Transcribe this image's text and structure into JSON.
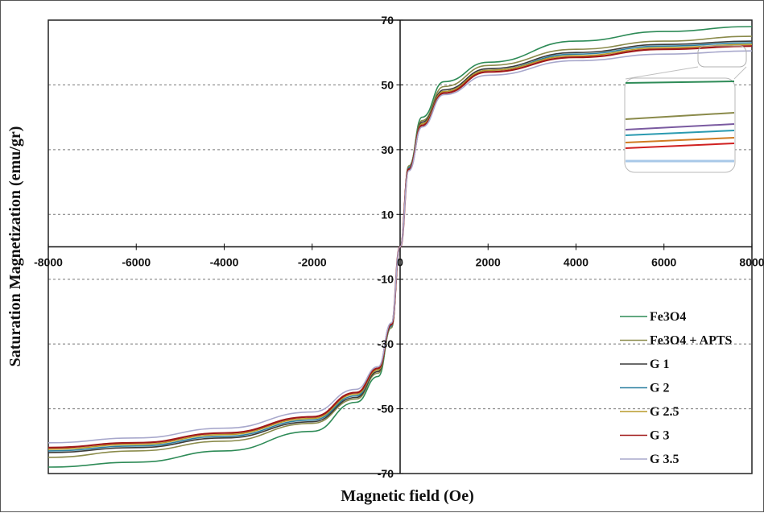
{
  "chart_data": {
    "type": "line",
    "xlabel": "Magnetic field (Oe)",
    "ylabel": "Saturation Magnetization (emu/gr)",
    "xlim": [
      -8000,
      8000
    ],
    "ylim": [
      -70,
      70
    ],
    "x_ticks": [
      "-8000",
      "-6000",
      "-4000",
      "-2000",
      "0",
      "2000",
      "4000",
      "6000",
      "8000"
    ],
    "y_ticks": [
      "70",
      "50",
      "30",
      "10",
      "-10",
      "-30",
      "-50",
      "-70"
    ],
    "grid": "horizontal dashed",
    "legend_position": "bottom-right",
    "x": [
      -8000,
      -6000,
      -4000,
      -2000,
      -1000,
      -500,
      -200,
      0,
      200,
      500,
      1000,
      2000,
      4000,
      6000,
      8000
    ],
    "series": [
      {
        "name": "Fe3O4",
        "color": "#2e8b57",
        "values": [
          -68,
          -66.5,
          -63,
          -57,
          -48,
          -40,
          -25,
          0,
          25,
          40,
          51,
          57,
          63.5,
          66.5,
          68
        ]
      },
      {
        "name": "Fe3O4 + APTS",
        "color": "#8a8a4a",
        "values": [
          -65,
          -63,
          -60,
          -54.5,
          -47,
          -39,
          -25,
          0,
          25,
          39,
          49.5,
          56,
          61,
          63.5,
          65
        ]
      },
      {
        "name": "G 1",
        "color": "#3a3a3a",
        "values": [
          -63.5,
          -62,
          -59,
          -54,
          -46.5,
          -38.5,
          -24.5,
          0,
          24.5,
          38.5,
          48.5,
          55,
          60,
          62.5,
          63.5
        ]
      },
      {
        "name": "G 2",
        "color": "#2a7fa0",
        "values": [
          -63,
          -61.5,
          -58.5,
          -53.5,
          -46,
          -38,
          -24.5,
          0,
          24.5,
          38,
          48,
          54.5,
          59.5,
          62,
          63
        ]
      },
      {
        "name": "G 2.5",
        "color": "#b89a2a",
        "values": [
          -62.5,
          -61,
          -58,
          -53,
          -45.5,
          -38,
          -24,
          0,
          24,
          38,
          48,
          54.5,
          59,
          61.5,
          62.5
        ]
      },
      {
        "name": "G 3",
        "color": "#a01818",
        "values": [
          -62,
          -60.5,
          -57.5,
          -52.5,
          -45,
          -37.5,
          -24,
          0,
          24,
          37.5,
          47.5,
          54,
          58.5,
          61,
          62
        ]
      },
      {
        "name": "G 3.5",
        "color": "#a8a8cc",
        "values": [
          -60.5,
          -59,
          -56,
          -51,
          -44,
          -37,
          -23.5,
          0,
          23.5,
          37,
          47,
          53,
          57.5,
          59.5,
          60.5
        ]
      }
    ],
    "inset_colors": [
      "#2e8b57",
      "#8a8a4a",
      "#7a5aa0",
      "#2a9ab0",
      "#d07a20",
      "#d02020",
      "#a8c8e8"
    ]
  }
}
